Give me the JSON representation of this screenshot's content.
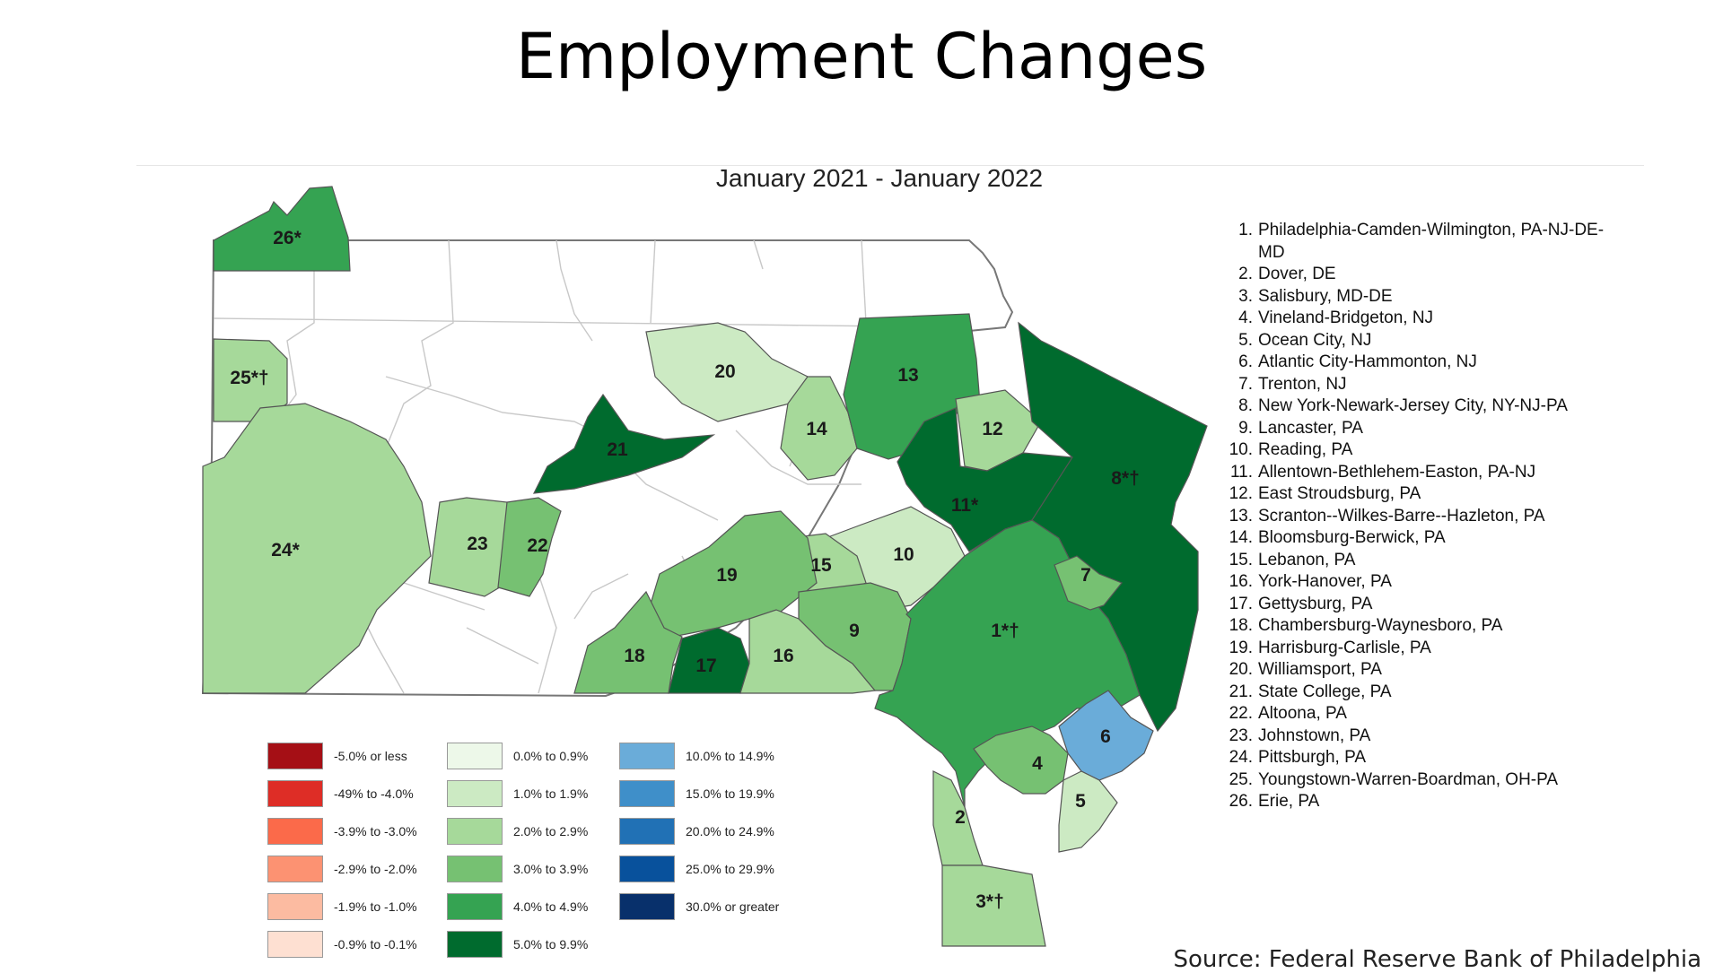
{
  "title": "Employment Changes",
  "map": {
    "subtitle": "January 2021 - January 2022",
    "regions": [
      {
        "label": "1*†",
        "color": "#35a352"
      },
      {
        "label": "2",
        "color": "#a6d99a"
      },
      {
        "label": "3*†",
        "color": "#a6d99a"
      },
      {
        "label": "4",
        "color": "#76c172"
      },
      {
        "label": "5",
        "color": "#cceac3"
      },
      {
        "label": "6",
        "color": "#6aacd9"
      },
      {
        "label": "7",
        "color": "#76c172"
      },
      {
        "label": "8*†",
        "color": "#006b2e"
      },
      {
        "label": "9",
        "color": "#76c172"
      },
      {
        "label": "10",
        "color": "#cceac3"
      },
      {
        "label": "11*",
        "color": "#006b2e"
      },
      {
        "label": "12",
        "color": "#a6d99a"
      },
      {
        "label": "13",
        "color": "#35a352"
      },
      {
        "label": "14",
        "color": "#a6d99a"
      },
      {
        "label": "15",
        "color": "#a6d99a"
      },
      {
        "label": "16",
        "color": "#a6d99a"
      },
      {
        "label": "17",
        "color": "#006b2e"
      },
      {
        "label": "18",
        "color": "#76c172"
      },
      {
        "label": "19",
        "color": "#76c172"
      },
      {
        "label": "20",
        "color": "#cceac3"
      },
      {
        "label": "21",
        "color": "#006b2e"
      },
      {
        "label": "22",
        "color": "#76c172"
      },
      {
        "label": "23",
        "color": "#a6d99a"
      },
      {
        "label": "24*",
        "color": "#a6d99a"
      },
      {
        "label": "25*†",
        "color": "#a6d99a"
      },
      {
        "label": "26*",
        "color": "#35a352"
      }
    ],
    "legend": [
      {
        "label": "-5.0% or less",
        "color": "#a50f15"
      },
      {
        "label": "-49% to -4.0%",
        "color": "#de2d26"
      },
      {
        "label": "-3.9% to -3.0%",
        "color": "#fb6a4a"
      },
      {
        "label": "-2.9% to -2.0%",
        "color": "#fc9272"
      },
      {
        "label": "-1.9% to -1.0%",
        "color": "#fcbba1"
      },
      {
        "label": "-0.9% to -0.1%",
        "color": "#fee0d2"
      },
      {
        "label": "0.0% to 0.9%",
        "color": "#edf8e9"
      },
      {
        "label": "1.0% to 1.9%",
        "color": "#cceac3"
      },
      {
        "label": "2.0% to 2.9%",
        "color": "#a6d99a"
      },
      {
        "label": "3.0% to 3.9%",
        "color": "#76c172"
      },
      {
        "label": "4.0% to 4.9%",
        "color": "#35a352"
      },
      {
        "label": "5.0% to 9.9%",
        "color": "#006b2e"
      },
      {
        "label": "10.0% to 14.9%",
        "color": "#6aacd9"
      },
      {
        "label": "15.0% to 19.9%",
        "color": "#3f8fc9"
      },
      {
        "label": "20.0% to 24.9%",
        "color": "#2171b5"
      },
      {
        "label": "25.0% to 29.9%",
        "color": "#08519c"
      },
      {
        "label": "30.0% or greater",
        "color": "#08306b"
      }
    ],
    "metros": [
      {
        "num": "1.",
        "name": "Philadelphia-Camden-Wilmington, PA-NJ-DE-MD"
      },
      {
        "num": "2.",
        "name": "Dover, DE"
      },
      {
        "num": "3.",
        "name": "Salisbury, MD-DE"
      },
      {
        "num": "4.",
        "name": "Vineland-Bridgeton, NJ"
      },
      {
        "num": "5.",
        "name": "Ocean City, NJ"
      },
      {
        "num": "6.",
        "name": "Atlantic City-Hammonton, NJ"
      },
      {
        "num": "7.",
        "name": "Trenton, NJ"
      },
      {
        "num": "8.",
        "name": "New York-Newark-Jersey City, NY-NJ-PA"
      },
      {
        "num": "9.",
        "name": "Lancaster, PA"
      },
      {
        "num": "10.",
        "name": "Reading, PA"
      },
      {
        "num": "11.",
        "name": "Allentown-Bethlehem-Easton, PA-NJ"
      },
      {
        "num": "12.",
        "name": "East Stroudsburg, PA"
      },
      {
        "num": "13.",
        "name": "Scranton--Wilkes-Barre--Hazleton, PA"
      },
      {
        "num": "14.",
        "name": "Bloomsburg-Berwick, PA"
      },
      {
        "num": "15.",
        "name": "Lebanon, PA"
      },
      {
        "num": "16.",
        "name": "York-Hanover, PA"
      },
      {
        "num": "17.",
        "name": "Gettysburg, PA"
      },
      {
        "num": "18.",
        "name": "Chambersburg-Waynesboro, PA"
      },
      {
        "num": "19.",
        "name": "Harrisburg-Carlisle, PA"
      },
      {
        "num": "20.",
        "name": "Williamsport, PA"
      },
      {
        "num": "21.",
        "name": "State College, PA"
      },
      {
        "num": "22.",
        "name": "Altoona, PA"
      },
      {
        "num": "23.",
        "name": "Johnstown, PA"
      },
      {
        "num": "24.",
        "name": "Pittsburgh, PA"
      },
      {
        "num": "25.",
        "name": "Youngstown-Warren-Boardman, OH-PA"
      },
      {
        "num": "26.",
        "name": "Erie, PA"
      }
    ]
  },
  "source": "Source: Federal Reserve Bank of Philadelphia"
}
